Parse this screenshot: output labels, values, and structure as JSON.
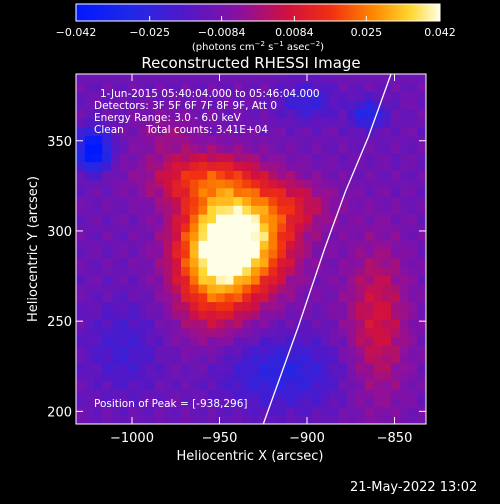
{
  "chart_data": {
    "type": "heatmap",
    "title": "Reconstructed RHESSI Image",
    "xlabel": "Heliocentric X (arcsec)",
    "ylabel": "Heliocentric Y (arcsec)",
    "xlim": [
      -1032,
      -832
    ],
    "ylim": [
      193,
      387
    ],
    "x_ticks": [
      -1000,
      -950,
      -900,
      -850
    ],
    "x_tick_labels": [
      "−1000",
      "−950",
      "−900",
      "−850"
    ],
    "y_ticks": [
      200,
      250,
      300,
      350
    ],
    "y_tick_labels": [
      "200",
      "250",
      "300",
      "350"
    ],
    "colorbar": {
      "min": -0.042,
      "max": 0.042,
      "ticks": [
        -0.042,
        -0.025,
        -0.0084,
        0.0084,
        0.025,
        0.042
      ],
      "tick_labels": [
        "−0.042",
        "−0.025",
        "−0.0084",
        "0.0084",
        "0.025",
        "0.042"
      ],
      "units_main": "(photons cm",
      "units_exp1": "−2",
      "units_mid1": " s",
      "units_exp2": "−1",
      "units_mid2": " asec",
      "units_exp3": "−2",
      "units_end": ")"
    },
    "annotations": {
      "time_range": "1-Jun-2015 05:40:04.000 to 05:46:04.000",
      "detectors": "Detectors: 3F 5F 6F 7F 8F 9F, Att 0",
      "energy": "Energy Range: 3.0 - 6.0 keV",
      "clean_label": "Clean",
      "total_counts": "Total counts: 3.41E+04",
      "peak": "Position of Peak = [-938,296]"
    },
    "peak": {
      "x": -938,
      "y": 296
    },
    "limb": [
      [
        -925,
        193
      ],
      [
        -905,
        247
      ],
      [
        -890,
        290
      ],
      [
        -878,
        322
      ],
      [
        -865,
        352
      ],
      [
        -852,
        387
      ]
    ],
    "sources": [
      {
        "x": -938,
        "y": 296,
        "sx": 28,
        "sy": 30,
        "amp": 0.052
      },
      {
        "x": -955,
        "y": 280,
        "sx": 22,
        "sy": 35,
        "amp": 0.028
      },
      {
        "x": -963,
        "y": 330,
        "sx": 30,
        "sy": 14,
        "amp": 0.02
      },
      {
        "x": -905,
        "y": 315,
        "sx": 22,
        "sy": 14,
        "amp": 0.012
      },
      {
        "x": -860,
        "y": 250,
        "sx": 18,
        "sy": 45,
        "amp": 0.018
      },
      {
        "x": -980,
        "y": 355,
        "sx": 18,
        "sy": 12,
        "amp": 0.008
      },
      {
        "x": -1022,
        "y": 345,
        "sx": 9,
        "sy": 11,
        "amp": -0.038
      },
      {
        "x": -915,
        "y": 222,
        "sx": 35,
        "sy": 20,
        "amp": -0.016
      },
      {
        "x": -1005,
        "y": 235,
        "sx": 20,
        "sy": 25,
        "amp": -0.01
      },
      {
        "x": -900,
        "y": 372,
        "sx": 15,
        "sy": 10,
        "amp": -0.014
      },
      {
        "x": -865,
        "y": 365,
        "sx": 10,
        "sy": 8,
        "amp": -0.02
      }
    ],
    "background": -0.0105,
    "grid": false
  },
  "footer": {
    "timestamp": "21-May-2022 13:02"
  }
}
